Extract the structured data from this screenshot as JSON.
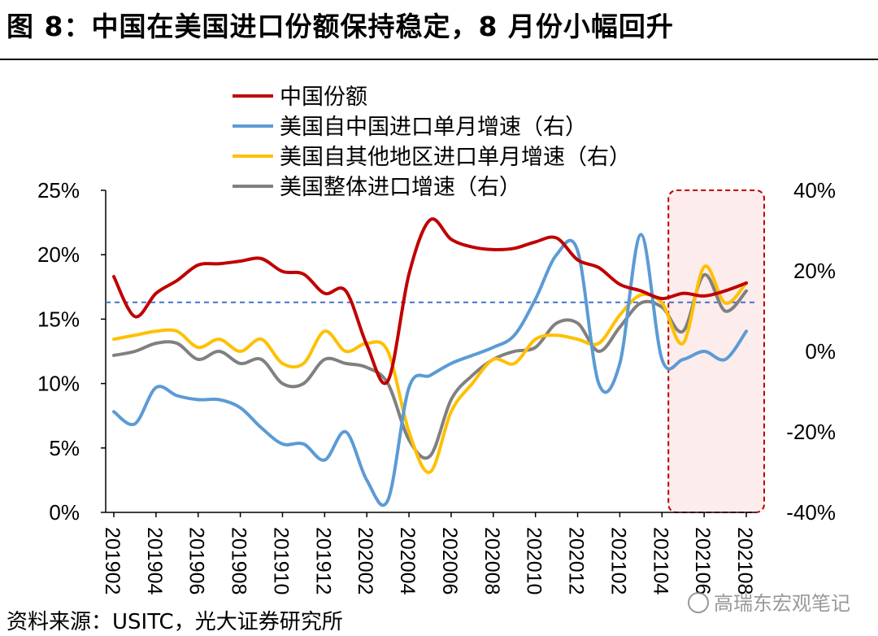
{
  "title": "图 8：中国在美国进口份额保持稳定，8 月份小幅回升",
  "source": "资料来源：USITC，光大证券研究所",
  "watermark": "高瑞东宏观笔记",
  "colors": {
    "china_share": "#C00000",
    "us_from_china": "#5B9BD5",
    "us_from_other": "#FFC000",
    "us_total": "#808080",
    "ref_line": "#4472C4",
    "highlight_border": "#C00000",
    "highlight_fill": "#FDECEC"
  },
  "chart_data": {
    "type": "line",
    "x": [
      "201902",
      "201903",
      "201904",
      "201905",
      "201906",
      "201907",
      "201908",
      "201909",
      "201910",
      "201911",
      "201912",
      "202001",
      "202002",
      "202003",
      "202004",
      "202005",
      "202006",
      "202007",
      "202008",
      "202009",
      "202010",
      "202011",
      "202012",
      "202101",
      "202102",
      "202103",
      "202104",
      "202105",
      "202106",
      "202107",
      "202108"
    ],
    "x_tick_labels": [
      "201902",
      "201904",
      "201906",
      "201908",
      "201910",
      "201912",
      "202002",
      "202004",
      "202006",
      "202008",
      "202010",
      "202012",
      "202102",
      "202104",
      "202106",
      "202108"
    ],
    "left_axis": {
      "min": 0,
      "max": 25,
      "ticks": [
        "0%",
        "5%",
        "10%",
        "15%",
        "20%",
        "25%"
      ]
    },
    "right_axis": {
      "min": -40,
      "max": 40,
      "ticks": [
        "-40%",
        "-20%",
        "0%",
        "20%",
        "40%"
      ]
    },
    "reference_line": {
      "axis": "left",
      "value": 16.3,
      "style": "dashed"
    },
    "highlight": {
      "from": "202105",
      "to": "202108"
    },
    "series": [
      {
        "key": "china_share",
        "name": "中国份额",
        "axis": "left",
        "values": [
          18.3,
          15.2,
          17.0,
          18.0,
          19.2,
          19.3,
          19.5,
          19.7,
          18.7,
          18.5,
          17.0,
          17.2,
          13.0,
          10.2,
          18.5,
          22.7,
          21.2,
          20.6,
          20.4,
          20.5,
          21.0,
          21.3,
          19.6,
          19.0,
          17.7,
          17.2,
          16.6,
          17.0,
          16.8,
          17.2,
          17.8
        ]
      },
      {
        "key": "us_from_china",
        "name": "美国自中国进口单月增速（右）",
        "axis": "right",
        "values": [
          -15,
          -18,
          -9,
          -11,
          -12,
          -12,
          -14,
          -19,
          -23,
          -23,
          -27,
          -20,
          -32,
          -37,
          -9,
          -6,
          -3,
          -1,
          1,
          4,
          13,
          24,
          25,
          -8,
          -3,
          29,
          -2,
          -2,
          0,
          -2,
          5
        ]
      },
      {
        "key": "us_from_other",
        "name": "美国自其他地区进口单月增速（右）",
        "axis": "right",
        "values": [
          3,
          4,
          5,
          5,
          1,
          3,
          0,
          3,
          -3,
          -3,
          5,
          0,
          2,
          0,
          -20,
          -30,
          -15,
          -8,
          -2,
          -3,
          3,
          4,
          3,
          2,
          9,
          14,
          12,
          2,
          21,
          12,
          17
        ]
      },
      {
        "key": "us_total",
        "name": "美国整体进口增速（右）",
        "axis": "right",
        "values": [
          -1,
          0,
          2,
          2,
          -2,
          0,
          -3,
          -2,
          -8,
          -8,
          -2,
          -3,
          -4,
          -8,
          -22,
          -26,
          -12,
          -6,
          -2,
          0,
          1,
          7,
          7,
          0,
          6,
          12,
          11,
          5,
          19,
          10,
          15
        ]
      }
    ]
  }
}
